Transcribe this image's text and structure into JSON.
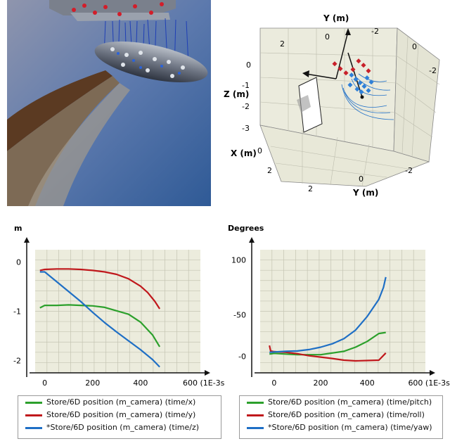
{
  "scene3d": {
    "axis_y_title": "Y (m)",
    "axis_y_bottom": "Y (m)",
    "axis_z": "Z (m)",
    "axis_x": "X (m)",
    "ticks_left_z": [
      "0",
      "-1",
      "-2",
      "-3"
    ],
    "ticks_top": [
      "2",
      "0",
      "-2"
    ],
    "ticks_right": [
      "0",
      "-2"
    ],
    "ticks_x": [
      "0",
      "2"
    ],
    "ticks_bottom": [
      "2",
      "0",
      "-2"
    ],
    "tick_right_top": "0"
  },
  "chart_data": [
    {
      "type": "line",
      "ylabel": "m",
      "xlabel": "600 (1E-3s)",
      "x_ticks": [
        "0",
        "200",
        "400"
      ],
      "y_ticks": [
        "0",
        "-1",
        "-2"
      ],
      "xlim": [
        -40,
        650
      ],
      "ylim": [
        -2.25,
        0.25
      ],
      "grid": true,
      "series": [
        {
          "name": "Store/6D position (m_camera) (time/x)",
          "color": "#2ca02c",
          "x": [
            -20,
            0,
            50,
            100,
            150,
            200,
            250,
            300,
            350,
            400,
            450,
            480
          ],
          "y": [
            -0.93,
            -0.88,
            -0.88,
            -0.87,
            -0.88,
            -0.89,
            -0.92,
            -0.99,
            -1.06,
            -1.22,
            -1.48,
            -1.72
          ]
        },
        {
          "name": "Store/6D position (m_camera) (time/y)",
          "color": "#c0181c",
          "x": [
            -20,
            0,
            50,
            100,
            150,
            200,
            250,
            300,
            350,
            400,
            430,
            460,
            480
          ],
          "y": [
            -0.17,
            -0.15,
            -0.14,
            -0.14,
            -0.15,
            -0.17,
            -0.2,
            -0.25,
            -0.34,
            -0.49,
            -0.62,
            -0.8,
            -0.95
          ]
        },
        {
          "name": "*Store/6D position (m_camera) (time/z)",
          "color": "#1f6fc5",
          "x": [
            -20,
            0,
            50,
            100,
            150,
            200,
            250,
            300,
            350,
            400,
            450,
            480
          ],
          "y": [
            -0.2,
            -0.2,
            -0.4,
            -0.6,
            -0.8,
            -1.02,
            -1.23,
            -1.42,
            -1.6,
            -1.78,
            -1.98,
            -2.13
          ]
        }
      ]
    },
    {
      "type": "line",
      "ylabel": "Degrees",
      "xlabel": "600 (1E-3s)",
      "x_ticks": [
        "0",
        "200",
        "400"
      ],
      "y_ticks": [
        "100",
        "-50",
        "-0"
      ],
      "xlim": [
        -60,
        650
      ],
      "ylim": [
        -6,
        30
      ],
      "grid": true,
      "series": [
        {
          "name": "Store/6D position (m_camera) (time/pitch)",
          "color": "#2ca02c",
          "x": [
            -20,
            0,
            50,
            100,
            200,
            300,
            350,
            400,
            450,
            480
          ],
          "y": [
            -0.5,
            -0.3,
            -0.5,
            -0.7,
            -0.7,
            0.3,
            1.5,
            3.2,
            5.5,
            5.8
          ]
        },
        {
          "name": "Store/6D position (m_camera) (time/roll)",
          "color": "#c0181c",
          "x": [
            -20,
            -15,
            0,
            50,
            100,
            150,
            200,
            250,
            300,
            350,
            400,
            450,
            480
          ],
          "y": [
            2.0,
            0.4,
            0.2,
            0.0,
            -0.4,
            -1.0,
            -1.4,
            -1.8,
            -2.3,
            -2.5,
            -2.4,
            -2.3,
            -0.2
          ]
        },
        {
          "name": "*Store/6D position (m_camera) (time/yaw)",
          "color": "#1f6fc5",
          "x": [
            -20,
            0,
            50,
            100,
            150,
            200,
            250,
            300,
            350,
            400,
            420,
            450,
            470,
            480
          ],
          "y": [
            0.0,
            0.1,
            0.3,
            0.4,
            0.8,
            1.5,
            2.5,
            4.0,
            6.5,
            10.5,
            12.5,
            15.5,
            19.0,
            22.0
          ]
        }
      ]
    }
  ]
}
